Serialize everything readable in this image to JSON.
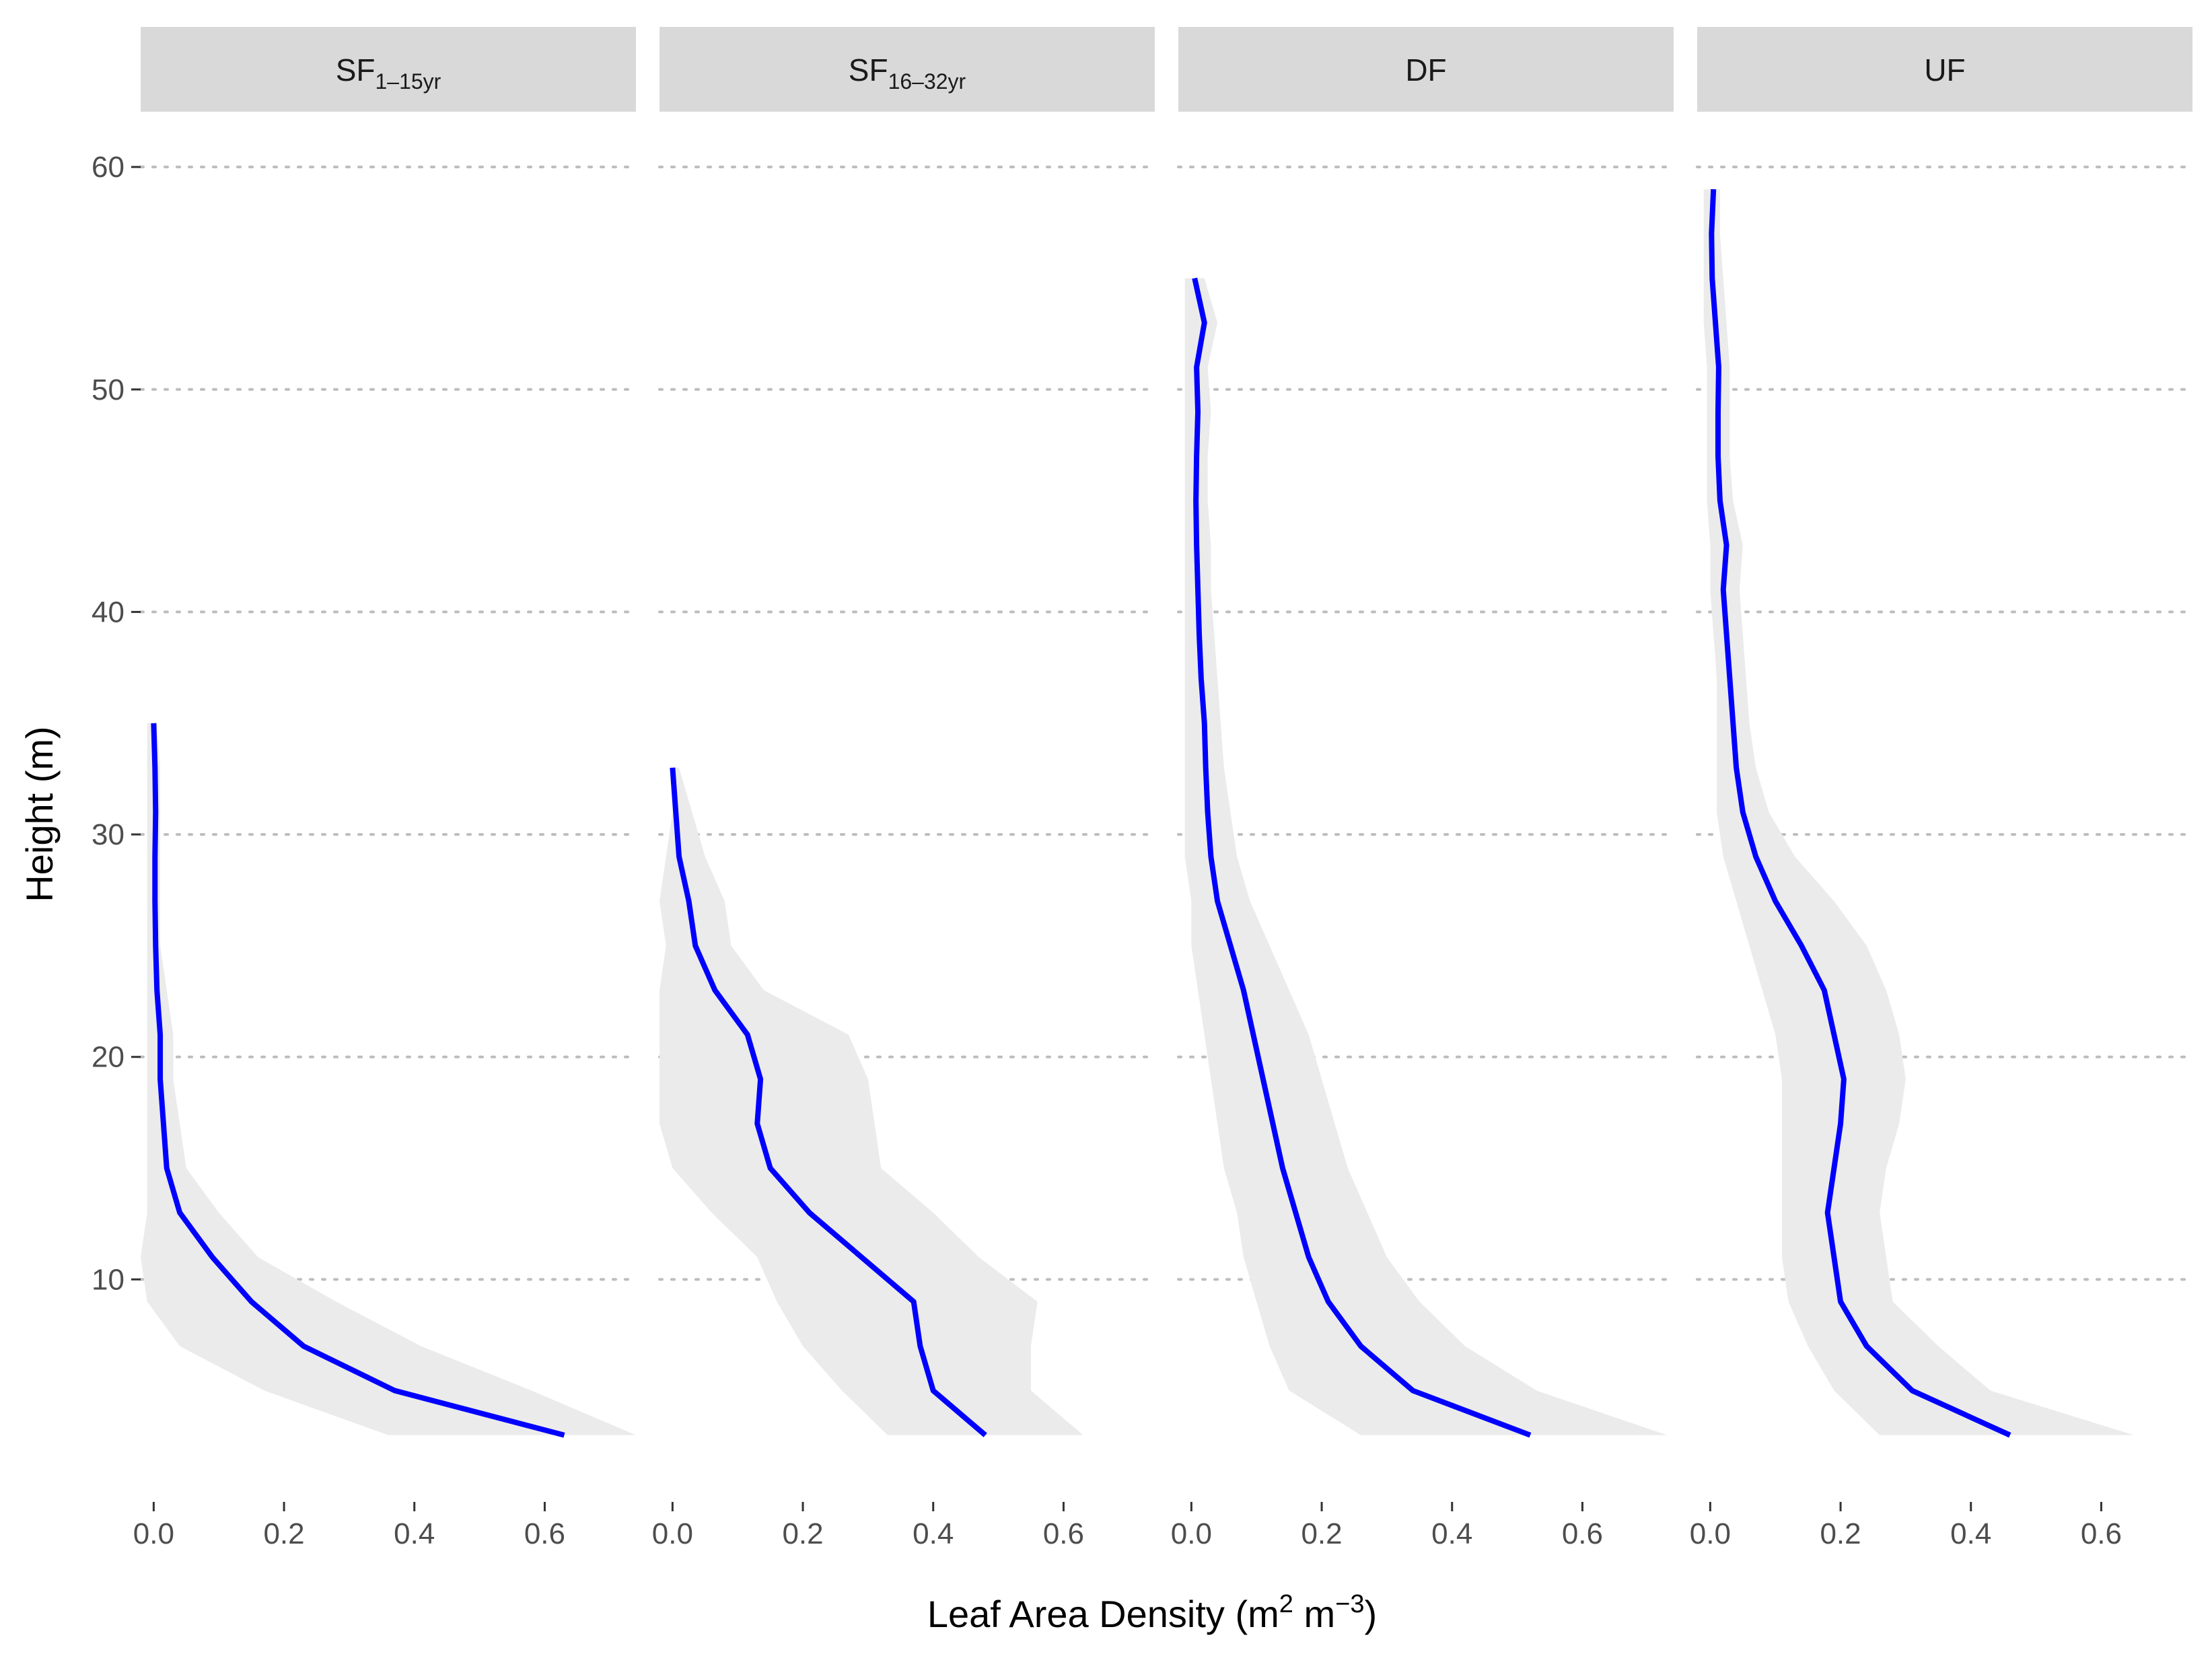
{
  "chart_data": {
    "type": "line",
    "description_style": "faceted vertical profile with confidence ribbon",
    "xlabel": "Leaf Area Density (m",
    "xlabel_parts": {
      "prefix": "Leaf Area Density (m",
      "sup1": "2",
      "mid": " m",
      "sup2": "−3",
      "suffix": ")"
    },
    "ylabel": "Height (m)",
    "xlim": [
      -0.02,
      0.74
    ],
    "ylim": [
      0,
      62
    ],
    "x_ticks": [
      0.0,
      0.2,
      0.4,
      0.6
    ],
    "x_tick_labels": [
      "0.0",
      "0.2",
      "0.4",
      "0.6"
    ],
    "y_ticks": [
      10,
      20,
      30,
      40,
      50,
      60
    ],
    "y_tick_labels": [
      "10",
      "20",
      "30",
      "40",
      "50",
      "60"
    ],
    "grid": "dotted horizontal major lines",
    "line_color": "#0000ff",
    "ribbon_color": "#ebebeb",
    "strip_color": "#d9d9d9",
    "facets": [
      {
        "strip": {
          "base": "SF",
          "sub": "1–15yr"
        },
        "height": [
          3,
          5,
          7,
          9,
          11,
          13,
          15,
          17,
          19,
          21,
          23,
          25,
          27,
          29,
          31,
          33,
          35
        ],
        "lad": [
          0.63,
          0.37,
          0.23,
          0.15,
          0.09,
          0.04,
          0.02,
          0.015,
          0.01,
          0.01,
          0.005,
          0.003,
          0.002,
          0.002,
          0.003,
          0.002,
          0.0
        ],
        "lower": [
          0.36,
          0.17,
          0.04,
          -0.01,
          -0.02,
          -0.01,
          -0.01,
          -0.01,
          -0.01,
          -0.01,
          -0.01,
          -0.01,
          -0.01,
          -0.01,
          -0.01,
          -0.01,
          -0.01
        ],
        "upper": [
          0.74,
          0.58,
          0.41,
          0.28,
          0.16,
          0.1,
          0.05,
          0.04,
          0.03,
          0.03,
          0.02,
          0.01,
          0.01,
          0.01,
          0.01,
          0.01,
          0.005
        ]
      },
      {
        "strip": {
          "base": "SF",
          "sub": "16–32yr"
        },
        "height": [
          3,
          5,
          7,
          9,
          11,
          13,
          15,
          17,
          19,
          21,
          23,
          25,
          27,
          29,
          31,
          33
        ],
        "lad": [
          0.48,
          0.4,
          0.38,
          0.37,
          0.29,
          0.21,
          0.15,
          0.13,
          0.135,
          0.115,
          0.065,
          0.035,
          0.025,
          0.01,
          0.005,
          0.0
        ],
        "lower": [
          0.33,
          0.26,
          0.2,
          0.16,
          0.13,
          0.06,
          0.0,
          -0.02,
          -0.02,
          -0.02,
          -0.02,
          -0.01,
          -0.02,
          -0.01,
          0.0,
          0.0
        ],
        "upper": [
          0.63,
          0.55,
          0.55,
          0.56,
          0.47,
          0.4,
          0.32,
          0.31,
          0.3,
          0.27,
          0.14,
          0.09,
          0.08,
          0.05,
          0.03,
          0.01
        ]
      },
      {
        "strip": {
          "base": "DF",
          "sub": ""
        },
        "height": [
          3,
          5,
          7,
          9,
          11,
          13,
          15,
          17,
          19,
          21,
          23,
          25,
          27,
          29,
          31,
          33,
          35,
          37,
          39,
          41,
          43,
          45,
          47,
          49,
          51,
          53,
          55
        ],
        "lad": [
          0.52,
          0.34,
          0.26,
          0.21,
          0.18,
          0.16,
          0.14,
          0.125,
          0.11,
          0.095,
          0.08,
          0.06,
          0.04,
          0.03,
          0.025,
          0.022,
          0.02,
          0.015,
          0.012,
          0.01,
          0.008,
          0.007,
          0.008,
          0.01,
          0.008,
          0.02,
          0.005
        ],
        "lower": [
          0.26,
          0.15,
          0.12,
          0.1,
          0.08,
          0.07,
          0.05,
          0.04,
          0.03,
          0.02,
          0.01,
          0.0,
          0.0,
          -0.01,
          -0.01,
          -0.01,
          -0.01,
          -0.01,
          -0.01,
          -0.01,
          -0.01,
          -0.01,
          -0.01,
          -0.01,
          -0.01,
          -0.01,
          -0.01
        ],
        "upper": [
          0.73,
          0.53,
          0.42,
          0.35,
          0.3,
          0.27,
          0.24,
          0.22,
          0.2,
          0.18,
          0.15,
          0.12,
          0.09,
          0.07,
          0.06,
          0.05,
          0.045,
          0.04,
          0.035,
          0.03,
          0.03,
          0.025,
          0.025,
          0.03,
          0.025,
          0.04,
          0.02
        ]
      },
      {
        "strip": {
          "base": "UF",
          "sub": ""
        },
        "height": [
          3,
          5,
          7,
          9,
          11,
          13,
          15,
          17,
          19,
          21,
          23,
          25,
          27,
          29,
          31,
          33,
          35,
          37,
          39,
          41,
          43,
          45,
          47,
          49,
          51,
          53,
          55,
          57,
          59
        ],
        "lad": [
          0.46,
          0.31,
          0.24,
          0.2,
          0.19,
          0.18,
          0.19,
          0.2,
          0.205,
          0.19,
          0.175,
          0.14,
          0.1,
          0.07,
          0.05,
          0.04,
          0.035,
          0.03,
          0.025,
          0.02,
          0.025,
          0.015,
          0.012,
          0.012,
          0.013,
          0.008,
          0.003,
          0.002,
          0.005
        ],
        "lower": [
          0.26,
          0.19,
          0.15,
          0.12,
          0.11,
          0.11,
          0.11,
          0.11,
          0.11,
          0.1,
          0.08,
          0.06,
          0.04,
          0.02,
          0.01,
          0.01,
          0.01,
          0.01,
          0.005,
          0.0,
          0.0,
          -0.005,
          -0.005,
          -0.005,
          -0.005,
          -0.01,
          -0.01,
          -0.01,
          -0.01
        ],
        "upper": [
          0.65,
          0.43,
          0.35,
          0.28,
          0.27,
          0.26,
          0.27,
          0.29,
          0.3,
          0.29,
          0.27,
          0.24,
          0.19,
          0.13,
          0.09,
          0.07,
          0.06,
          0.055,
          0.05,
          0.045,
          0.05,
          0.035,
          0.03,
          0.03,
          0.03,
          0.025,
          0.02,
          0.015,
          0.015
        ]
      }
    ]
  }
}
